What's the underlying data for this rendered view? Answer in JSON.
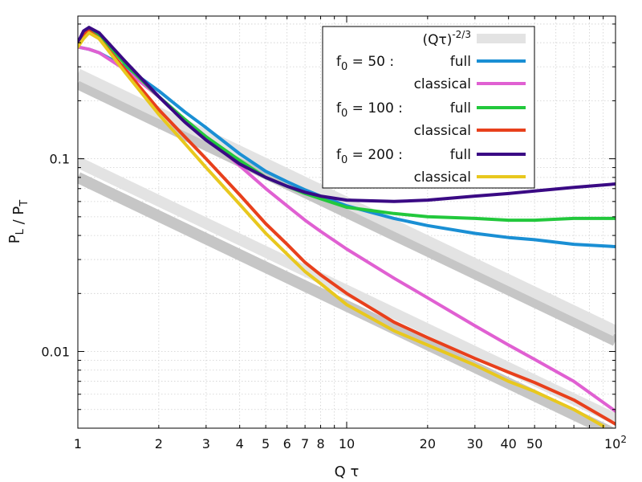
{
  "chart_data": {
    "type": "line",
    "title": "",
    "xlabel": "Q τ",
    "ylabel": "P_L / P_T",
    "x_scale": "log",
    "y_scale": "log",
    "xlim": [
      1,
      100
    ],
    "ylim": [
      0.004,
      0.55
    ],
    "grid": true,
    "legend_position": "top-right",
    "x_ticks": [
      {
        "value": 1,
        "label": "1"
      },
      {
        "value": 2,
        "label": "2"
      },
      {
        "value": 3,
        "label": "3"
      },
      {
        "value": 4,
        "label": "4"
      },
      {
        "value": 5,
        "label": "5"
      },
      {
        "value": 6,
        "label": "6"
      },
      {
        "value": 7,
        "label": "7"
      },
      {
        "value": 8,
        "label": "8"
      },
      {
        "value": 10,
        "label": "10"
      },
      {
        "value": 20,
        "label": "20"
      },
      {
        "value": 30,
        "label": "30"
      },
      {
        "value": 40,
        "label": "40"
      },
      {
        "value": 50,
        "label": "50"
      },
      {
        "value": 100,
        "label": "10",
        "sup": "2"
      }
    ],
    "y_ticks": [
      {
        "value": 0.1,
        "label": "0.1"
      },
      {
        "value": 0.01,
        "label": "0.01"
      }
    ],
    "legend": {
      "reference_label": "(Qτ)",
      "reference_exponent": "-2/3",
      "groups": [
        {
          "label": "f",
          "subscript": "0",
          "value_text": " = 50 :"
        },
        {
          "label": "f",
          "subscript": "0",
          "value_text": " = 100 :"
        },
        {
          "label": "f",
          "subscript": "0",
          "value_text": " = 200 :"
        }
      ],
      "full_label": "full",
      "classical_label": "classical"
    },
    "reference_lines": [
      {
        "x": [
          1,
          100
        ],
        "y": [
          0.245,
          0.01137
        ],
        "color": "#c6c6c6"
      },
      {
        "x": [
          1,
          100
        ],
        "y": [
          0.275,
          0.01276
        ],
        "color": "#e3e3e3"
      },
      {
        "x": [
          1,
          100
        ],
        "y": [
          0.08,
          0.00371
        ],
        "color": "#c6c6c6"
      },
      {
        "x": [
          1,
          100
        ],
        "y": [
          0.096,
          0.00446
        ],
        "color": "#e3e3e3"
      }
    ],
    "series": [
      {
        "f0": "50",
        "kind": "full",
        "color": "#1a8fd4",
        "x": [
          1,
          1.05,
          1.1,
          1.2,
          1.5,
          2,
          2.5,
          3,
          4,
          5,
          6,
          7,
          8,
          10,
          15,
          20,
          30,
          40,
          50,
          70,
          100
        ],
        "y": [
          0.38,
          0.375,
          0.37,
          0.355,
          0.3,
          0.225,
          0.175,
          0.145,
          0.106,
          0.086,
          0.076,
          0.069,
          0.064,
          0.057,
          0.049,
          0.045,
          0.041,
          0.039,
          0.038,
          0.036,
          0.035
        ]
      },
      {
        "f0": "50",
        "kind": "classical",
        "color": "#e060d2",
        "x": [
          1,
          1.05,
          1.1,
          1.2,
          1.5,
          2,
          2.5,
          3,
          4,
          5,
          6,
          7,
          8,
          10,
          15,
          20,
          30,
          40,
          50,
          70,
          100
        ],
        "y": [
          0.38,
          0.375,
          0.37,
          0.355,
          0.29,
          0.21,
          0.16,
          0.13,
          0.092,
          0.07,
          0.057,
          0.048,
          0.042,
          0.034,
          0.024,
          0.019,
          0.0136,
          0.0108,
          0.0091,
          0.007,
          0.0049
        ]
      },
      {
        "f0": "100",
        "kind": "full",
        "color": "#22c83c",
        "x": [
          1,
          1.05,
          1.1,
          1.2,
          1.5,
          2,
          2.5,
          3,
          4,
          5,
          6,
          7,
          8,
          10,
          15,
          20,
          30,
          40,
          50,
          70,
          100
        ],
        "y": [
          0.38,
          0.44,
          0.48,
          0.44,
          0.31,
          0.21,
          0.16,
          0.13,
          0.098,
          0.08,
          0.072,
          0.066,
          0.062,
          0.056,
          0.052,
          0.05,
          0.049,
          0.048,
          0.048,
          0.049,
          0.049
        ]
      },
      {
        "f0": "100",
        "kind": "classical",
        "color": "#e8401c",
        "x": [
          1,
          1.05,
          1.1,
          1.2,
          1.5,
          2,
          2.5,
          3,
          4,
          5,
          6,
          7,
          8,
          10,
          15,
          20,
          30,
          40,
          50,
          70,
          100
        ],
        "y": [
          0.38,
          0.44,
          0.46,
          0.42,
          0.29,
          0.18,
          0.13,
          0.1,
          0.065,
          0.046,
          0.036,
          0.029,
          0.025,
          0.02,
          0.0142,
          0.0118,
          0.0092,
          0.0078,
          0.0069,
          0.0056,
          0.0042
        ]
      },
      {
        "f0": "200",
        "kind": "full",
        "color": "#3a0a84",
        "x": [
          1,
          1.05,
          1.1,
          1.2,
          1.5,
          2,
          2.5,
          3,
          4,
          5,
          6,
          7,
          8,
          10,
          15,
          20,
          30,
          40,
          50,
          70,
          100
        ],
        "y": [
          0.4,
          0.46,
          0.48,
          0.45,
          0.32,
          0.21,
          0.155,
          0.125,
          0.094,
          0.08,
          0.072,
          0.067,
          0.064,
          0.061,
          0.06,
          0.061,
          0.064,
          0.066,
          0.068,
          0.071,
          0.074
        ]
      },
      {
        "f0": "200",
        "kind": "classical",
        "color": "#e8c81e",
        "x": [
          1,
          1.05,
          1.1,
          1.2,
          1.5,
          2,
          2.5,
          3,
          4,
          5,
          6,
          7,
          8,
          10,
          15,
          20,
          30,
          40,
          50,
          70,
          90
        ],
        "y": [
          0.38,
          0.42,
          0.45,
          0.42,
          0.28,
          0.17,
          0.12,
          0.09,
          0.058,
          0.041,
          0.032,
          0.026,
          0.0225,
          0.0175,
          0.0128,
          0.0108,
          0.0085,
          0.007,
          0.0062,
          0.005,
          0.0041
        ]
      }
    ]
  }
}
